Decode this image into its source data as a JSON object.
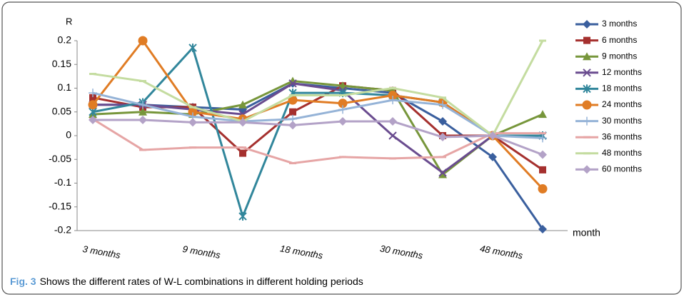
{
  "chart_data": {
    "type": "line",
    "y_label": "R",
    "x_label": "month",
    "caption_label": "Fig. 3",
    "caption": "Shows the different rates of W-L combinations in different holding periods",
    "categories": [
      "3 months",
      null,
      "9 months",
      null,
      "18 months",
      null,
      "30 months",
      null,
      "48 months",
      null
    ],
    "ylim": [
      -0.2,
      0.2
    ],
    "yticks": [
      0.2,
      0.15,
      0.1,
      0.05,
      0,
      -0.05,
      -0.1,
      -0.15,
      -0.2
    ],
    "series": [
      {
        "name": "3 months",
        "color": "#3a5f9e",
        "marker": "diamond",
        "values": [
          0.065,
          0.065,
          0.06,
          0.055,
          0.11,
          0.1,
          0.09,
          0.03,
          -0.045,
          -0.197
        ]
      },
      {
        "name": "6 months",
        "color": "#a5302e",
        "marker": "square",
        "values": [
          0.08,
          0.06,
          0.06,
          -0.037,
          0.05,
          0.105,
          0.095,
          0,
          0,
          -0.072
        ]
      },
      {
        "name": "9 months",
        "color": "#77963b",
        "marker": "triangle",
        "values": [
          0.045,
          0.05,
          0.045,
          0.065,
          0.115,
          0.105,
          0.095,
          -0.082,
          0,
          0.045
        ]
      },
      {
        "name": "12 months",
        "color": "#6a4c8f",
        "marker": "x",
        "values": [
          0.065,
          0.065,
          0.055,
          0.045,
          0.11,
          0.095,
          0,
          -0.078,
          0,
          0
        ]
      },
      {
        "name": "18 months",
        "color": "#31869b",
        "marker": "star",
        "values": [
          0.05,
          0.07,
          0.185,
          -0.17,
          0.09,
          0.09,
          0.085,
          0.07,
          0,
          0
        ]
      },
      {
        "name": "24 months",
        "color": "#e07c24",
        "marker": "circle",
        "values": [
          0.065,
          0.2,
          0.05,
          0.035,
          0.075,
          0.068,
          0.085,
          0.07,
          0,
          -0.112
        ]
      },
      {
        "name": "30 months",
        "color": "#95b3d7",
        "marker": "plus",
        "values": [
          0.09,
          0.065,
          0.04,
          0.03,
          0.035,
          0.055,
          0.075,
          0.065,
          0,
          -0.005
        ]
      },
      {
        "name": "36 months",
        "color": "#e6a5a5",
        "marker": "dash",
        "values": [
          0.035,
          -0.03,
          -0.025,
          -0.025,
          -0.058,
          -0.045,
          -0.048,
          -0.045,
          0.005,
          0.005
        ]
      },
      {
        "name": "48 months",
        "color": "#c4dca0",
        "marker": "dash",
        "values": [
          0.13,
          0.115,
          0.06,
          0.03,
          0.085,
          0.085,
          0.1,
          0.08,
          0,
          0.2
        ]
      },
      {
        "name": "60 months",
        "color": "#b3a2c7",
        "marker": "diamond",
        "values": [
          0.033,
          0.033,
          0.028,
          0.028,
          0.022,
          0.03,
          0.03,
          -0.003,
          0,
          -0.04
        ]
      }
    ]
  }
}
